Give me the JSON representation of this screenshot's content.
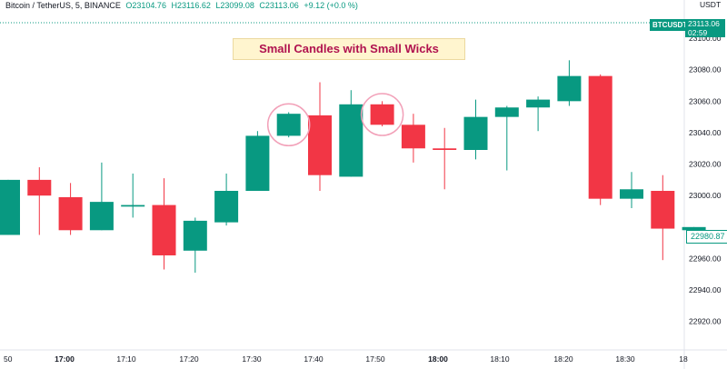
{
  "header": {
    "symbol": "Bitcoin / TetherUS, 5, BINANCE",
    "open": "O23104.76",
    "high": "H23116.62",
    "low": "L23099.08",
    "close": "C23113.06",
    "change": "+9.12 (+0.0 %)"
  },
  "annotation": {
    "title": "Small Candles with Small Wicks"
  },
  "price_labels": {
    "symbol_tag": "BTCUSDT",
    "last_price": "23113.06",
    "countdown": "02:59",
    "marker_price": "22980.87"
  },
  "colors": {
    "up": "#089981",
    "down": "#f23645",
    "highlight": "#f2a0b8",
    "annotation_text": "#b0124f"
  },
  "chart_data": {
    "type": "candlestick",
    "y_unit": "USDT",
    "ylim": [
      22910,
      23122
    ],
    "yticks": [
      23100,
      23080,
      23060,
      23040,
      23020,
      23000,
      22960,
      22940,
      22920
    ],
    "xticks": [
      "50",
      "17:00",
      "17:10",
      "17:20",
      "17:30",
      "17:40",
      "17:50",
      "18:00",
      "18:10",
      "18:20",
      "18:30",
      "18"
    ],
    "xticks_bold": [
      "17:00",
      "18:00"
    ],
    "candles": [
      {
        "o": 22975,
        "h": 23010,
        "l": 22975,
        "c": 23010
      },
      {
        "o": 23010,
        "h": 23018,
        "l": 22975,
        "c": 23000
      },
      {
        "o": 22999,
        "h": 23008,
        "l": 22975,
        "c": 22978
      },
      {
        "o": 22978,
        "h": 23021,
        "l": 22978,
        "c": 22996
      },
      {
        "o": 22993,
        "h": 23014,
        "l": 22986,
        "c": 22994
      },
      {
        "o": 22994,
        "h": 23011,
        "l": 22953,
        "c": 22962
      },
      {
        "o": 22965,
        "h": 22986,
        "l": 22951,
        "c": 22984
      },
      {
        "o": 22983,
        "h": 23014,
        "l": 22981,
        "c": 23003
      },
      {
        "o": 23003,
        "h": 23041,
        "l": 23003,
        "c": 23038
      },
      {
        "o": 23038,
        "h": 23053,
        "l": 23037,
        "c": 23052
      },
      {
        "o": 23051,
        "h": 23072,
        "l": 23003,
        "c": 23013
      },
      {
        "o": 23012,
        "h": 23067,
        "l": 23012,
        "c": 23058
      },
      {
        "o": 23058,
        "h": 23060,
        "l": 23044,
        "c": 23045
      },
      {
        "o": 23045,
        "h": 23052,
        "l": 23021,
        "c": 23030
      },
      {
        "o": 23030,
        "h": 23043,
        "l": 23004,
        "c": 23029
      },
      {
        "o": 23029,
        "h": 23061,
        "l": 23023,
        "c": 23050
      },
      {
        "o": 23050,
        "h": 23057,
        "l": 23016,
        "c": 23056
      },
      {
        "o": 23056,
        "h": 23063,
        "l": 23041,
        "c": 23061
      },
      {
        "o": 23060,
        "h": 23086,
        "l": 23057,
        "c": 23076
      },
      {
        "o": 23076,
        "h": 23077,
        "l": 22994,
        "c": 22998
      },
      {
        "o": 22998,
        "h": 23015,
        "l": 22992,
        "c": 23004
      },
      {
        "o": 23003,
        "h": 23013,
        "l": 22959,
        "c": 22979
      },
      {
        "o": 22978,
        "h": 22980,
        "l": 22978,
        "c": 22980
      }
    ],
    "highlighted_candles": [
      9,
      12
    ]
  }
}
